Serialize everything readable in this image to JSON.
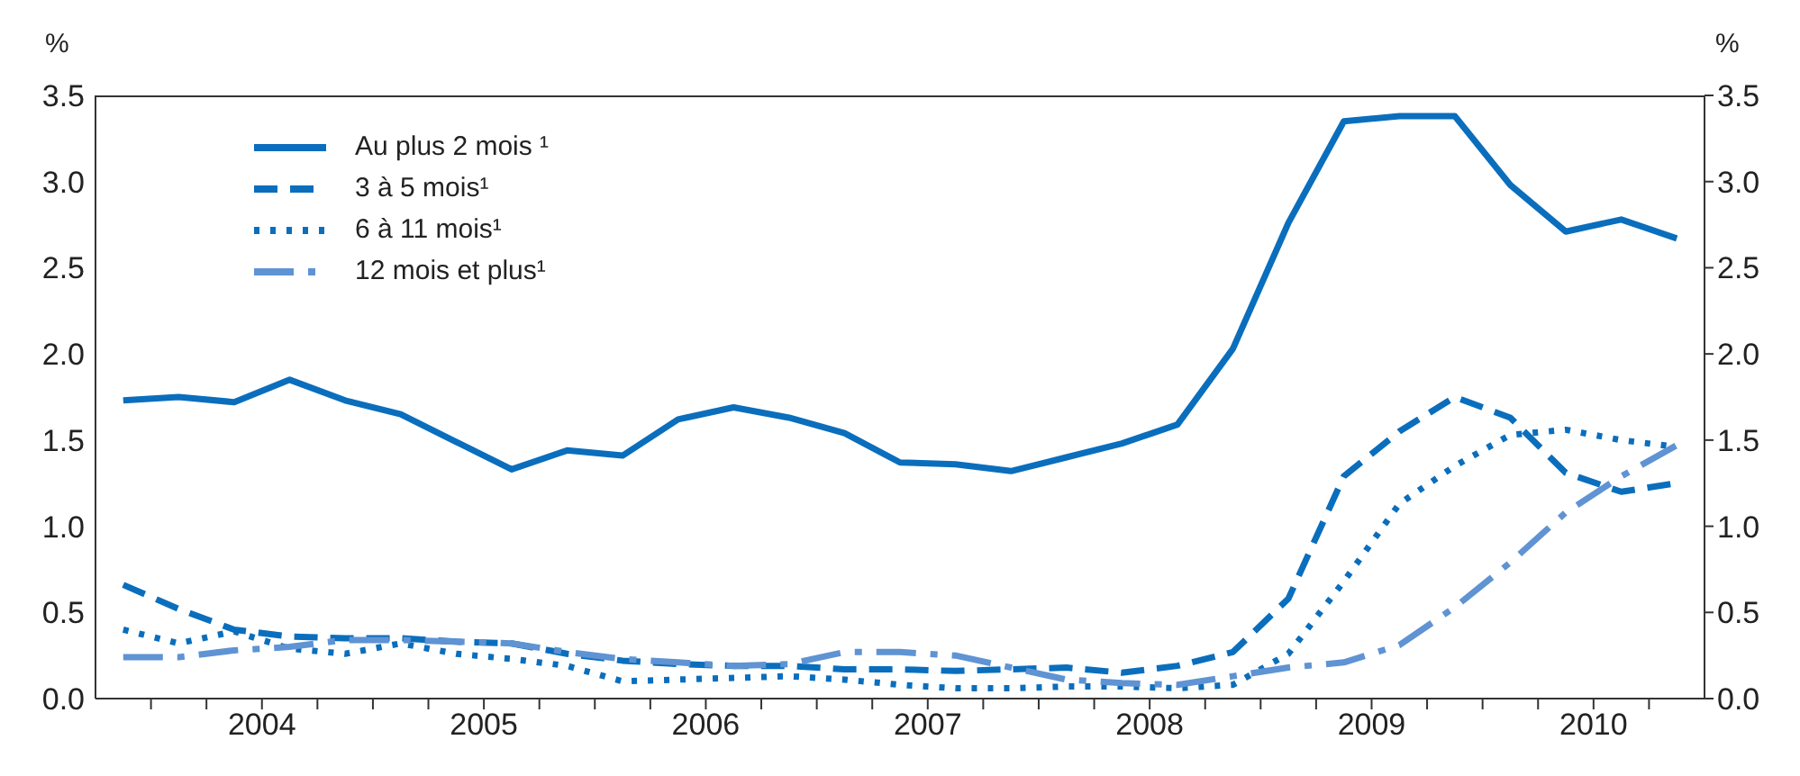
{
  "chart_data": {
    "type": "line",
    "ylabel": "%",
    "y2label": "%",
    "x": [
      2003.375,
      2003.625,
      2003.875,
      2004.125,
      2004.375,
      2004.625,
      2004.875,
      2005.125,
      2005.375,
      2005.625,
      2005.875,
      2006.125,
      2006.375,
      2006.625,
      2006.875,
      2007.125,
      2007.375,
      2007.625,
      2007.875,
      2008.125,
      2008.375,
      2008.625,
      2008.875,
      2009.125,
      2009.375,
      2009.625,
      2009.875,
      2010.125,
      2010.375
    ],
    "xlim": [
      2003.25,
      2010.5
    ],
    "xticks": [
      {
        "value": 2003.5,
        "label": null
      },
      {
        "value": 2003.75,
        "label": null
      },
      {
        "value": 2004,
        "label": "2004"
      },
      {
        "value": 2004.25,
        "label": null
      },
      {
        "value": 2004.5,
        "label": null
      },
      {
        "value": 2004.75,
        "label": null
      },
      {
        "value": 2005,
        "label": "2005"
      },
      {
        "value": 2005.25,
        "label": null
      },
      {
        "value": 2005.5,
        "label": null
      },
      {
        "value": 2005.75,
        "label": null
      },
      {
        "value": 2006,
        "label": "2006"
      },
      {
        "value": 2006.25,
        "label": null
      },
      {
        "value": 2006.5,
        "label": null
      },
      {
        "value": 2006.75,
        "label": null
      },
      {
        "value": 2007,
        "label": "2007"
      },
      {
        "value": 2007.25,
        "label": null
      },
      {
        "value": 2007.5,
        "label": null
      },
      {
        "value": 2007.75,
        "label": null
      },
      {
        "value": 2008,
        "label": "2008"
      },
      {
        "value": 2008.25,
        "label": null
      },
      {
        "value": 2008.5,
        "label": null
      },
      {
        "value": 2008.75,
        "label": null
      },
      {
        "value": 2009,
        "label": "2009"
      },
      {
        "value": 2009.25,
        "label": null
      },
      {
        "value": 2009.5,
        "label": null
      },
      {
        "value": 2009.75,
        "label": null
      },
      {
        "value": 2010,
        "label": "2010"
      },
      {
        "value": 2010.25,
        "label": null
      }
    ],
    "ylim": [
      0,
      3.5
    ],
    "yticks": [
      {
        "value": 0,
        "label": "0.0"
      },
      {
        "value": 0.5,
        "label": "0.5"
      },
      {
        "value": 1,
        "label": "1.0"
      },
      {
        "value": 1.5,
        "label": "1.5"
      },
      {
        "value": 2,
        "label": "2.0"
      },
      {
        "value": 2.5,
        "label": "2.5"
      },
      {
        "value": 3,
        "label": "3.0"
      },
      {
        "value": 3.5,
        "label": "3.5"
      }
    ],
    "y2lim": [
      0,
      3.5
    ],
    "y2ticks": [
      {
        "value": 0,
        "label": "0.0"
      },
      {
        "value": 0.5,
        "label": "0.5"
      },
      {
        "value": 1,
        "label": "1.0"
      },
      {
        "value": 1.5,
        "label": "1.5"
      },
      {
        "value": 2,
        "label": "2.0"
      },
      {
        "value": 2.5,
        "label": "2.5"
      },
      {
        "value": 3,
        "label": "3.0"
      },
      {
        "value": 3.5,
        "label": "3.5"
      }
    ],
    "grid": false,
    "legend": "top left",
    "marker": "none",
    "series": [
      {
        "name": "Au plus 2 mois ¹",
        "color": "#0a6ebd",
        "line_style": "solid",
        "values": [
          1.73,
          1.75,
          1.72,
          1.85,
          1.73,
          1.65,
          1.49,
          1.33,
          1.44,
          1.41,
          1.62,
          1.69,
          1.63,
          1.54,
          1.37,
          1.36,
          1.32,
          1.4,
          1.48,
          1.59,
          2.03,
          2.76,
          3.35,
          3.38,
          3.38,
          2.98,
          2.71,
          2.78,
          2.67
        ]
      },
      {
        "name": "3 à 5 mois¹",
        "color": "#0a6ebd",
        "line_style": "dashed",
        "values": [
          0.66,
          0.52,
          0.4,
          0.36,
          0.35,
          0.35,
          0.33,
          0.32,
          0.26,
          0.22,
          0.2,
          0.19,
          0.19,
          0.17,
          0.17,
          0.16,
          0.17,
          0.18,
          0.15,
          0.19,
          0.27,
          0.58,
          1.29,
          1.55,
          1.75,
          1.63,
          1.31,
          1.2,
          1.25
        ]
      },
      {
        "name": "6 à 11 mois¹",
        "color": "#0a6ebd",
        "line_style": "dotted",
        "values": [
          0.4,
          0.32,
          0.39,
          0.29,
          0.26,
          0.32,
          0.26,
          0.23,
          0.19,
          0.1,
          0.11,
          0.12,
          0.13,
          0.11,
          0.08,
          0.06,
          0.06,
          0.07,
          0.07,
          0.06,
          0.08,
          0.26,
          0.68,
          1.13,
          1.35,
          1.53,
          1.56,
          1.5,
          1.46
        ]
      },
      {
        "name": "12 mois et plus¹",
        "color": "#5f93d3",
        "line_style": "dashdot",
        "values": [
          0.24,
          0.24,
          0.28,
          0.3,
          0.34,
          0.34,
          0.33,
          0.32,
          0.27,
          0.23,
          0.21,
          0.19,
          0.2,
          0.27,
          0.27,
          0.25,
          0.18,
          0.11,
          0.09,
          0.08,
          0.13,
          0.18,
          0.21,
          0.31,
          0.53,
          0.79,
          1.08,
          1.29,
          1.47
        ]
      }
    ]
  }
}
